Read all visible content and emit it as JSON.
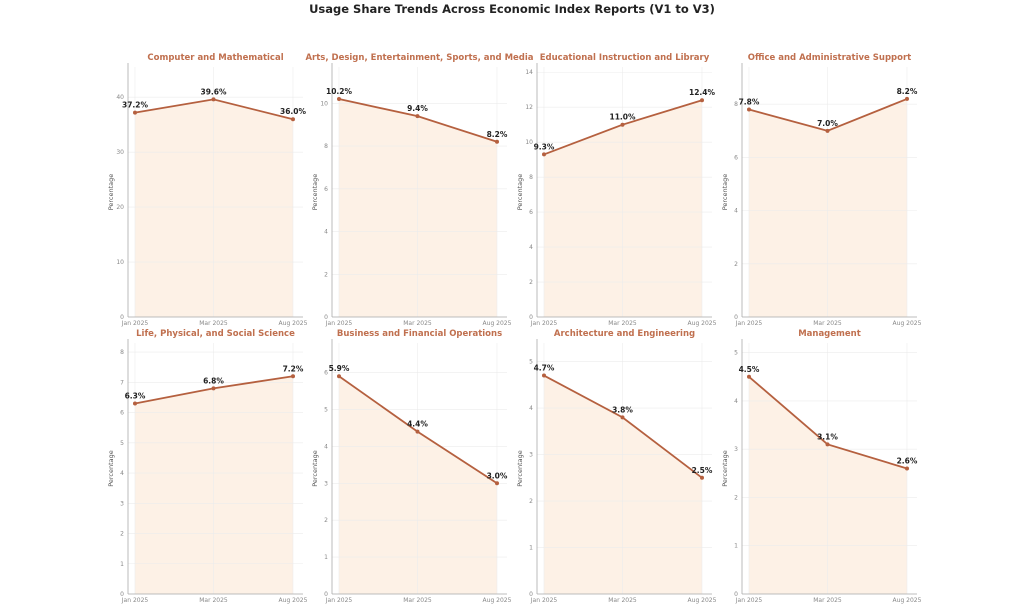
{
  "title": "Usage Share Trends Across Economic Index Reports (V1 to V3)",
  "colors": {
    "line": "#b5603f",
    "fill": "#fdf1e6",
    "title": "#c0704f",
    "grid": "#ececec"
  },
  "chart_data": [
    {
      "type": "line",
      "title": "Computer and Mathematical",
      "categories": [
        "Jan 2025",
        "Mar 2025",
        "Aug 2025"
      ],
      "values": [
        37.2,
        39.6,
        36.0
      ],
      "labels": [
        "37.2%",
        "39.6%",
        "36.0%"
      ],
      "ylabel": "Percentage",
      "yticks": [
        0,
        10,
        20,
        30,
        40
      ],
      "ylim": [
        0,
        45.5
      ]
    },
    {
      "type": "line",
      "title": "Arts, Design, Entertainment, Sports, and Media",
      "categories": [
        "Jan 2025",
        "Mar 2025",
        "Aug 2025"
      ],
      "values": [
        10.2,
        9.4,
        8.2
      ],
      "labels": [
        "10.2%",
        "9.4%",
        "8.2%"
      ],
      "ylabel": "Percentage",
      "yticks": [
        0,
        2,
        4,
        6,
        8,
        10
      ],
      "ylim": [
        0,
        11.7
      ]
    },
    {
      "type": "line",
      "title": "Educational Instruction and Library",
      "categories": [
        "Jan 2025",
        "Mar 2025",
        "Aug 2025"
      ],
      "values": [
        9.3,
        11.0,
        12.4
      ],
      "labels": [
        "9.3%",
        "11.0%",
        "12.4%"
      ],
      "ylabel": "Percentage",
      "yticks": [
        0,
        2,
        4,
        6,
        8,
        10,
        12,
        14
      ],
      "ylim": [
        0,
        14.3
      ]
    },
    {
      "type": "line",
      "title": "Office and Administrative Support",
      "categories": [
        "Jan 2025",
        "Mar 2025",
        "Aug 2025"
      ],
      "values": [
        7.8,
        7.0,
        8.2
      ],
      "labels": [
        "7.8%",
        "7.0%",
        "8.2%"
      ],
      "ylabel": "Percentage",
      "yticks": [
        0,
        2,
        4,
        6,
        8
      ],
      "ylim": [
        0,
        9.4
      ]
    },
    {
      "type": "line",
      "title": "Life, Physical, and Social Science",
      "categories": [
        "Jan 2025",
        "Mar 2025",
        "Aug 2025"
      ],
      "values": [
        6.3,
        6.8,
        7.2
      ],
      "labels": [
        "6.3%",
        "6.8%",
        "7.2%"
      ],
      "ylabel": "Percentage",
      "yticks": [
        0,
        1,
        2,
        3,
        4,
        5,
        6,
        7,
        8
      ],
      "ylim": [
        0,
        8.3
      ]
    },
    {
      "type": "line",
      "title": "Business and Financial Operations",
      "categories": [
        "Jan 2025",
        "Mar 2025",
        "Aug 2025"
      ],
      "values": [
        5.9,
        4.4,
        3.0
      ],
      "labels": [
        "5.9%",
        "4.4%",
        "3.0%"
      ],
      "ylabel": "Percentage",
      "yticks": [
        0,
        1,
        2,
        3,
        4,
        5,
        6
      ],
      "ylim": [
        0,
        6.8
      ]
    },
    {
      "type": "line",
      "title": "Architecture and Engineering",
      "categories": [
        "Jan 2025",
        "Mar 2025",
        "Aug 2025"
      ],
      "values": [
        4.7,
        3.8,
        2.5
      ],
      "labels": [
        "4.7%",
        "3.8%",
        "2.5%"
      ],
      "ylabel": "Percentage",
      "yticks": [
        0,
        1,
        2,
        3,
        4,
        5
      ],
      "ylim": [
        0,
        5.4
      ]
    },
    {
      "type": "line",
      "title": "Management",
      "categories": [
        "Jan 2025",
        "Mar 2025",
        "Aug 2025"
      ],
      "values": [
        4.5,
        3.1,
        2.6
      ],
      "labels": [
        "4.5%",
        "3.1%",
        "2.6%"
      ],
      "ylabel": "Percentage",
      "yticks": [
        0,
        1,
        2,
        3,
        4,
        5
      ],
      "ylim": [
        0,
        5.2
      ]
    }
  ]
}
